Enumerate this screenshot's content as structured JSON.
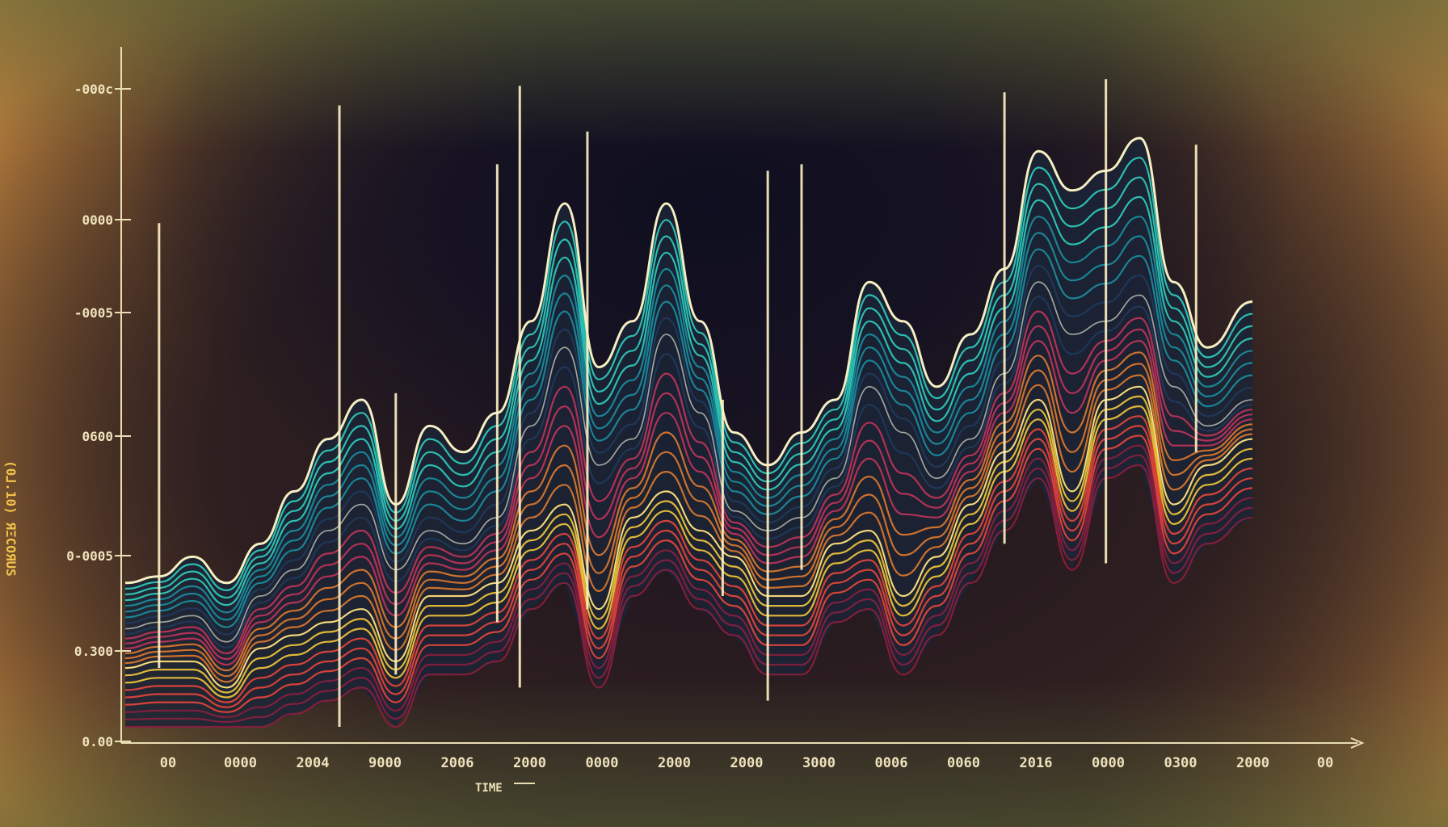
{
  "chart_data": {
    "type": "area",
    "title": "",
    "xlabel": "TIME",
    "ylabel": "(0⅃.10) ЯΞCOЯUS",
    "yticks": [
      "-000c",
      "0000",
      "-0005",
      "0600",
      "0-0005",
      "0.300",
      "0.00"
    ],
    "xticks": [
      "00",
      "0000",
      "2004",
      "9000",
      "2006",
      "2000",
      "0000",
      "2000",
      "2000",
      "3000",
      "0006",
      "0060",
      "2016",
      "0000",
      "0300",
      "2000",
      "00"
    ],
    "ylim": [
      0,
      1
    ],
    "grid": false,
    "legend": "none",
    "colors": {
      "axis": "#e9ddb4",
      "axis_title": "#f1c24a",
      "crest": "#fff2c4",
      "bands": [
        "#2fcfbf",
        "#1a8fa0",
        "#203a5c",
        "#c2345a",
        "#e07a2e",
        "#f5c93a",
        "#e9463a",
        "#8a1f3f"
      ]
    },
    "x": [
      0.0,
      0.03,
      0.06,
      0.09,
      0.12,
      0.15,
      0.18,
      0.21,
      0.24,
      0.27,
      0.3,
      0.33,
      0.36,
      0.39,
      0.42,
      0.45,
      0.48,
      0.51,
      0.54,
      0.57,
      0.6,
      0.63,
      0.66,
      0.69,
      0.72,
      0.75,
      0.78,
      0.81,
      0.84,
      0.87,
      0.9,
      0.93,
      0.96,
      1.0
    ],
    "series": [
      {
        "values": [
          0.22,
          0.23,
          0.26,
          0.22,
          0.28,
          0.36,
          0.44,
          0.5,
          0.34,
          0.46,
          0.42,
          0.48,
          0.62,
          0.8,
          0.55,
          0.62,
          0.8,
          0.62,
          0.45,
          0.4,
          0.45,
          0.5,
          0.68,
          0.62,
          0.52,
          0.6,
          0.7,
          0.88,
          0.82,
          0.85,
          0.9,
          0.68,
          0.58,
          0.65
        ]
      },
      {
        "values": [
          0.15,
          0.16,
          0.17,
          0.13,
          0.2,
          0.24,
          0.3,
          0.34,
          0.24,
          0.3,
          0.28,
          0.32,
          0.46,
          0.58,
          0.4,
          0.44,
          0.6,
          0.48,
          0.33,
          0.3,
          0.32,
          0.38,
          0.52,
          0.45,
          0.38,
          0.44,
          0.54,
          0.68,
          0.6,
          0.62,
          0.66,
          0.52,
          0.46,
          0.5
        ]
      },
      {
        "values": [
          0.09,
          0.1,
          0.1,
          0.06,
          0.12,
          0.14,
          0.16,
          0.18,
          0.1,
          0.2,
          0.2,
          0.22,
          0.3,
          0.34,
          0.18,
          0.32,
          0.36,
          0.3,
          0.26,
          0.2,
          0.2,
          0.28,
          0.3,
          0.2,
          0.26,
          0.34,
          0.42,
          0.5,
          0.36,
          0.5,
          0.52,
          0.34,
          0.4,
          0.44
        ]
      }
    ],
    "spikes": [
      {
        "x": 0.03,
        "top": 0.77,
        "bottom": 0.09
      },
      {
        "x": 0.19,
        "top": 0.95,
        "bottom": 0.0
      },
      {
        "x": 0.24,
        "top": 0.51,
        "bottom": 0.08
      },
      {
        "x": 0.33,
        "top": 0.86,
        "bottom": 0.16
      },
      {
        "x": 0.35,
        "top": 0.98,
        "bottom": 0.06
      },
      {
        "x": 0.41,
        "top": 0.91,
        "bottom": 0.18
      },
      {
        "x": 0.53,
        "top": 0.5,
        "bottom": 0.2
      },
      {
        "x": 0.57,
        "top": 0.85,
        "bottom": 0.04
      },
      {
        "x": 0.6,
        "top": 0.86,
        "bottom": 0.24
      },
      {
        "x": 0.78,
        "top": 0.97,
        "bottom": 0.28
      },
      {
        "x": 0.87,
        "top": 0.99,
        "bottom": 0.25
      },
      {
        "x": 0.95,
        "top": 0.89,
        "bottom": 0.42
      }
    ]
  }
}
